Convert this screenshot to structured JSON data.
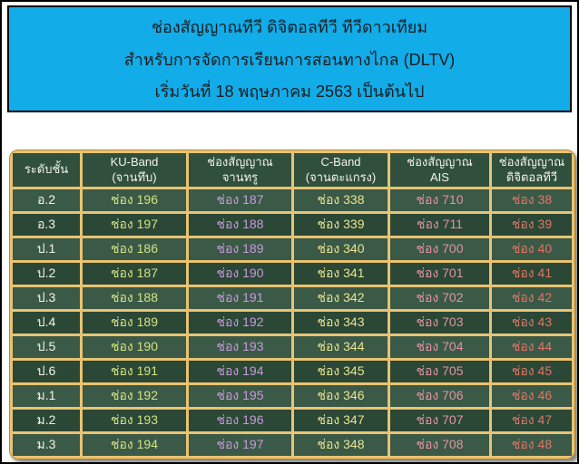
{
  "title": {
    "line1": "ช่องสัญญาณทีวี  ดิจิตอลทีวี ทีวีดาวเทียม",
    "line2": "สำหรับการจัดการเรียนการสอนทางไกล (DLTV)",
    "line3": "เริ่มวันที่ 18 พฤษภาคม 2563 เป็นต้นไป"
  },
  "colors": {
    "banner_bg": "#12ACE8",
    "banner_text": "#1A1D21",
    "table_border_gold": "#E9C372",
    "header_cell_bg": "#30503D",
    "row_light_bg": "#3B5947",
    "row_dark_bg": "#2B4736",
    "header_text": "#F5F3E8",
    "grade_text": "#F5F3E8",
    "ku_text": "#D3E382",
    "true_text": "#C79BD9",
    "cband_text": "#E9E48E",
    "ais_text": "#E194A4",
    "digital_text": "#E07766"
  },
  "table": {
    "headers": [
      {
        "line1": "ระดับชั้น",
        "line2": ""
      },
      {
        "line1": "KU-Band",
        "line2": "(จานทึบ)"
      },
      {
        "line1": "ช่องสัญญาณ",
        "line2": "จานทรู"
      },
      {
        "line1": "C-Band",
        "line2": "(จานตะแกรง)"
      },
      {
        "line1": "ช่องสัญญาณ",
        "line2": "AIS"
      },
      {
        "line1": "ช่องสัญญาณ",
        "line2": "ดิจิตอลทีวี"
      }
    ],
    "rows": [
      {
        "grade": "อ.2",
        "ku_band": "ช่อง 196",
        "true_dish": "ช่อง 187",
        "c_band": "ช่อง 338",
        "ais": "ช่อง 710",
        "digital_tv": "ช่อง 38"
      },
      {
        "grade": "อ.3",
        "ku_band": "ช่อง 197",
        "true_dish": "ช่อง 188",
        "c_band": "ช่อง 339",
        "ais": "ช่อง 711",
        "digital_tv": "ช่อง 39"
      },
      {
        "grade": "ป.1",
        "ku_band": "ช่อง 186",
        "true_dish": "ช่อง 189",
        "c_band": "ช่อง 340",
        "ais": "ช่อง 700",
        "digital_tv": "ช่อง 40"
      },
      {
        "grade": "ป.2",
        "ku_band": "ช่อง 187",
        "true_dish": "ช่อง 190",
        "c_band": "ช่อง 341",
        "ais": "ช่อง 701",
        "digital_tv": "ช่อง 41"
      },
      {
        "grade": "ป.3",
        "ku_band": "ช่อง 188",
        "true_dish": "ช่อง 191",
        "c_band": "ช่อง 342",
        "ais": "ช่อง 702",
        "digital_tv": "ช่อง 42"
      },
      {
        "grade": "ป.4",
        "ku_band": "ช่อง 189",
        "true_dish": "ช่อง 192",
        "c_band": "ช่อง 343",
        "ais": "ช่อง 703",
        "digital_tv": "ช่อง 43"
      },
      {
        "grade": "ป.5",
        "ku_band": "ช่อง 190",
        "true_dish": "ช่อง 193",
        "c_band": "ช่อง 344",
        "ais": "ช่อง 704",
        "digital_tv": "ช่อง 44"
      },
      {
        "grade": "ป.6",
        "ku_band": "ช่อง 191",
        "true_dish": "ช่อง 194",
        "c_band": "ช่อง 345",
        "ais": "ช่อง 705",
        "digital_tv": "ช่อง 45"
      },
      {
        "grade": "ม.1",
        "ku_band": "ช่อง 192",
        "true_dish": "ช่อง 195",
        "c_band": "ช่อง 346",
        "ais": "ช่อง 706",
        "digital_tv": "ช่อง 46"
      },
      {
        "grade": "ม.2",
        "ku_band": "ช่อง 193",
        "true_dish": "ช่อง 196",
        "c_band": "ช่อง 347",
        "ais": "ช่อง 707",
        "digital_tv": "ช่อง 47"
      },
      {
        "grade": "ม.3",
        "ku_band": "ช่อง 194",
        "true_dish": "ช่อง 197",
        "c_band": "ช่อง 348",
        "ais": "ช่อง 708",
        "digital_tv": "ช่อง 48"
      }
    ]
  }
}
